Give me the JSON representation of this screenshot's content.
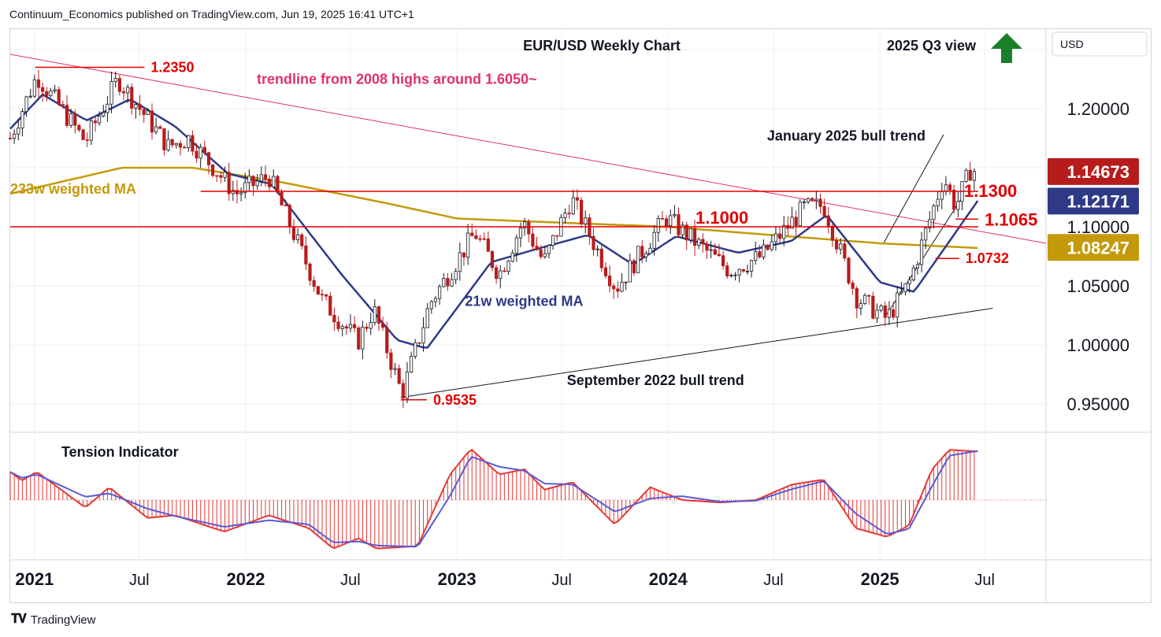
{
  "header": {
    "publisher_line": "Continuum_Economics published on TradingView.com, Jun 19, 2025 16:41 UTC+1"
  },
  "footer": {
    "brand": "TradingView",
    "logo_icon": "tradingview-logo-icon"
  },
  "colors": {
    "grid": "#eef0f3",
    "up": "#131722",
    "down": "#b71c1c",
    "level": "#e00000",
    "ma21": "#2e3a87",
    "ma233": "#c49a0a",
    "trend_pink": "#e0306a",
    "bull": "#131722",
    "arrow": "#1b7f2a",
    "tension_red": "#e53935",
    "tension_blue": "#5a5ad6"
  },
  "chart_data": {
    "type": "candlestick",
    "title": "EUR/USD Weekly Chart",
    "subtitle": "2025 Q3 view",
    "outlook": "up",
    "currency_label": "USD",
    "y_ticks": [
      "1.20000",
      "1.05000",
      "1.00000",
      "0.95000"
    ],
    "ylim": [
      0.93,
      1.26
    ],
    "x_ticks": [
      {
        "label": "2021",
        "date": "2021-01-01",
        "bold": true
      },
      {
        "label": "Jul",
        "date": "2021-07-01",
        "bold": false
      },
      {
        "label": "2022",
        "date": "2022-01-01",
        "bold": true
      },
      {
        "label": "Jul",
        "date": "2022-07-01",
        "bold": false
      },
      {
        "label": "2023",
        "date": "2023-01-01",
        "bold": true
      },
      {
        "label": "Jul",
        "date": "2023-07-01",
        "bold": false
      },
      {
        "label": "2024",
        "date": "2024-01-01",
        "bold": true
      },
      {
        "label": "Jul",
        "date": "2024-07-01",
        "bold": false
      },
      {
        "label": "2025",
        "date": "2025-01-01",
        "bold": true
      },
      {
        "label": "Jul",
        "date": "2025-07-01",
        "bold": false
      }
    ],
    "xlim": [
      "2020-11-20",
      "2025-10-15"
    ],
    "price_badges": [
      {
        "label": "1.14673",
        "value": 1.14673,
        "kind": "price",
        "bg": "#b71c1c"
      },
      {
        "label": "1.12171",
        "value": 1.12171,
        "kind": "ma21",
        "bg": "#2e3a87"
      },
      {
        "label": "1.10000",
        "value": 1.1,
        "kind": "tick",
        "bg": ""
      },
      {
        "label": "1.08247",
        "value": 1.08247,
        "kind": "ma233",
        "bg": "#c49a0a"
      }
    ],
    "levels": [
      {
        "value": 1.13,
        "label": "1.1300",
        "from": "2021-10-15",
        "to": "2025-06-20"
      },
      {
        "value": 1.1,
        "label": "1.1000",
        "from": "2020-11-20",
        "to": "2025-06-20"
      }
    ],
    "level_markers": [
      {
        "label": "1.2350",
        "value": 1.235,
        "date": "2021-01-05"
      },
      {
        "label": "1.1065",
        "value": 1.1065,
        "date": "2025-05-12"
      },
      {
        "label": "1.0732",
        "value": 1.0732,
        "date": "2025-04-07"
      },
      {
        "label": "0.9535",
        "value": 0.9535,
        "date": "2022-09-26"
      }
    ],
    "annotations": [
      {
        "text": "trendline from 2008 highs around 1.6050~",
        "date": "2022-01-20",
        "value": 1.221,
        "color": "pink"
      },
      {
        "text": "January 2025 bull trend",
        "date": "2024-06-20",
        "value": 1.173,
        "color": "dark"
      },
      {
        "text": "233w weighted MA",
        "date": "2020-11-20",
        "value": 1.128,
        "color": "gold"
      },
      {
        "text": "21w weighted MA",
        "date": "2023-01-15",
        "value": 1.033,
        "color": "blue"
      },
      {
        "text": "September 2022 bull trend",
        "date": "2023-07-10",
        "value": 0.966,
        "color": "dark"
      }
    ],
    "trendlines": [
      {
        "name": "2008 highs trendline",
        "points": [
          [
            "2020-11-20",
            1.246
          ],
          [
            "2025-10-15",
            1.086
          ]
        ],
        "color": "pink"
      },
      {
        "name": "September 2022 bull trend",
        "points": [
          [
            "2022-09-26",
            0.9555
          ],
          [
            "2025-07-15",
            1.031
          ]
        ],
        "color": "dark"
      },
      {
        "name": "January 2025 bull channel upper",
        "points": [
          [
            "2025-01-06",
            1.085
          ],
          [
            "2025-04-21",
            1.178
          ]
        ],
        "color": "dark"
      },
      {
        "name": "January 2025 bull channel lower",
        "points": [
          [
            "2025-01-13",
            1.026
          ],
          [
            "2025-05-26",
            1.127
          ]
        ],
        "color": "dark"
      }
    ],
    "anchors": [
      [
        "2020-11-20",
        1.175
      ],
      [
        "2021-01-05",
        1.228
      ],
      [
        "2021-03-30",
        1.172
      ],
      [
        "2021-05-25",
        1.225
      ],
      [
        "2021-08-20",
        1.168
      ],
      [
        "2021-09-24",
        1.175
      ],
      [
        "2021-12-15",
        1.128
      ],
      [
        "2022-02-10",
        1.143
      ],
      [
        "2022-05-13",
        1.038
      ],
      [
        "2022-07-14",
        1.003
      ],
      [
        "2022-08-10",
        1.03
      ],
      [
        "2022-09-28",
        0.958
      ],
      [
        "2022-11-15",
        1.035
      ],
      [
        "2023-02-01",
        1.095
      ],
      [
        "2023-03-15",
        1.06
      ],
      [
        "2023-04-25",
        1.104
      ],
      [
        "2023-05-31",
        1.07
      ],
      [
        "2023-07-18",
        1.124
      ],
      [
        "2023-10-03",
        1.048
      ],
      [
        "2023-12-28",
        1.108
      ],
      [
        "2024-04-16",
        1.063
      ],
      [
        "2024-06-10",
        1.075
      ],
      [
        "2024-08-23",
        1.116
      ],
      [
        "2024-09-26",
        1.118
      ],
      [
        "2024-11-22",
        1.04
      ],
      [
        "2025-01-13",
        1.022
      ],
      [
        "2025-02-20",
        1.052
      ],
      [
        "2025-03-18",
        1.091
      ],
      [
        "2025-04-21",
        1.142
      ],
      [
        "2025-05-12",
        1.117
      ],
      [
        "2025-06-06",
        1.148
      ],
      [
        "2025-06-19",
        1.147
      ]
    ],
    "ma21_anchors": [
      [
        "2020-11-20",
        1.183
      ],
      [
        "2021-01-15",
        1.212
      ],
      [
        "2021-04-01",
        1.19
      ],
      [
        "2021-06-15",
        1.208
      ],
      [
        "2021-09-01",
        1.185
      ],
      [
        "2021-12-01",
        1.145
      ],
      [
        "2022-02-15",
        1.136
      ],
      [
        "2022-06-15",
        1.06
      ],
      [
        "2022-09-20",
        1.004
      ],
      [
        "2022-11-10",
        0.997
      ],
      [
        "2023-03-01",
        1.07
      ],
      [
        "2023-06-01",
        1.083
      ],
      [
        "2023-08-15",
        1.093
      ],
      [
        "2023-11-01",
        1.068
      ],
      [
        "2024-01-15",
        1.092
      ],
      [
        "2024-05-01",
        1.078
      ],
      [
        "2024-08-01",
        1.088
      ],
      [
        "2024-10-01",
        1.11
      ],
      [
        "2025-01-01",
        1.053
      ],
      [
        "2025-03-01",
        1.045
      ],
      [
        "2025-06-19",
        1.122
      ]
    ],
    "ma233_anchors": [
      [
        "2020-11-20",
        1.128
      ],
      [
        "2021-06-01",
        1.15
      ],
      [
        "2021-10-01",
        1.15
      ],
      [
        "2022-03-01",
        1.138
      ],
      [
        "2022-09-01",
        1.12
      ],
      [
        "2023-01-01",
        1.107
      ],
      [
        "2023-06-01",
        1.104
      ],
      [
        "2024-01-01",
        1.1
      ],
      [
        "2024-06-01",
        1.094
      ],
      [
        "2025-01-01",
        1.086
      ],
      [
        "2025-06-19",
        1.082
      ]
    ],
    "tension": {
      "label": "Tension Indicator",
      "anchors": [
        [
          "2020-11-20",
          0.55
        ],
        [
          "2020-12-10",
          0.38
        ],
        [
          "2021-01-05",
          0.55
        ],
        [
          "2021-03-30",
          -0.15
        ],
        [
          "2021-05-10",
          0.25
        ],
        [
          "2021-07-15",
          -0.35
        ],
        [
          "2021-09-01",
          -0.3
        ],
        [
          "2021-11-25",
          -0.62
        ],
        [
          "2022-02-10",
          -0.3
        ],
        [
          "2022-04-20",
          -0.55
        ],
        [
          "2022-06-01",
          -0.95
        ],
        [
          "2022-07-15",
          -0.75
        ],
        [
          "2022-08-15",
          -0.95
        ],
        [
          "2022-10-25",
          -0.9
        ],
        [
          "2022-12-20",
          0.5
        ],
        [
          "2023-01-25",
          1.0
        ],
        [
          "2023-03-15",
          0.5
        ],
        [
          "2023-04-28",
          0.6
        ],
        [
          "2023-06-01",
          0.2
        ],
        [
          "2023-07-20",
          0.35
        ],
        [
          "2023-10-01",
          -0.48
        ],
        [
          "2023-12-01",
          0.25
        ],
        [
          "2024-01-25",
          0.0
        ],
        [
          "2024-04-01",
          -0.05
        ],
        [
          "2024-06-01",
          0.0
        ],
        [
          "2024-08-01",
          0.3
        ],
        [
          "2024-09-26",
          0.4
        ],
        [
          "2024-11-20",
          -0.55
        ],
        [
          "2025-01-13",
          -0.72
        ],
        [
          "2025-02-20",
          -0.5
        ],
        [
          "2025-04-01",
          0.6
        ],
        [
          "2025-05-01",
          0.98
        ],
        [
          "2025-06-19",
          0.95
        ]
      ]
    }
  }
}
